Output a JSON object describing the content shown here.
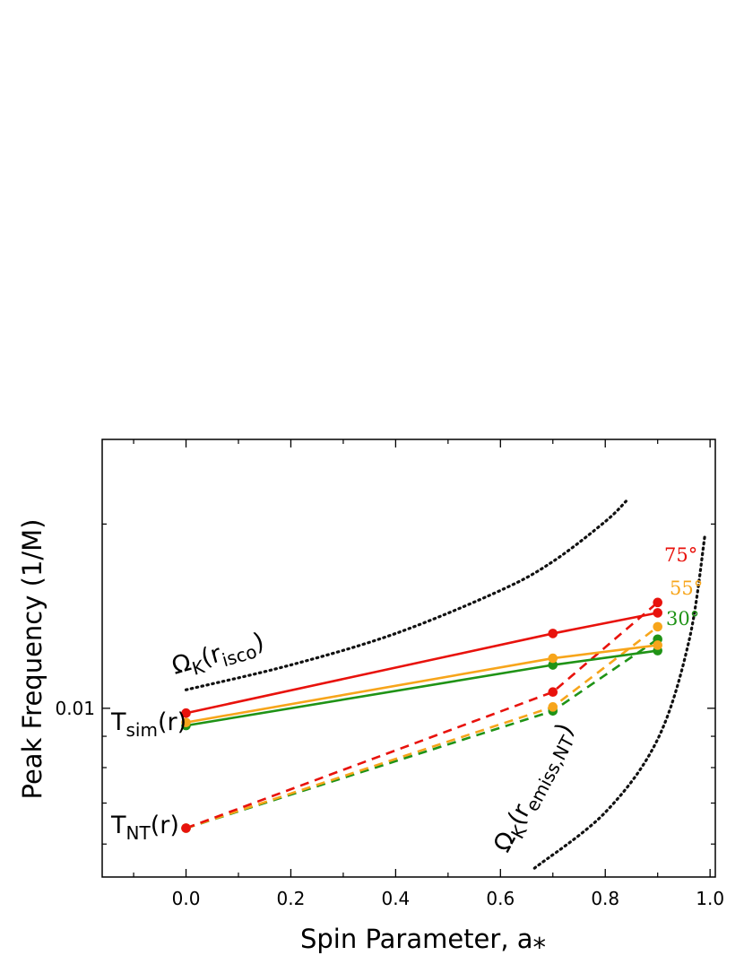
{
  "colors": {
    "75": "#e8120c",
    "55": "#f7a51b",
    "30": "#1f9316",
    "dotted": "#111111"
  },
  "chart_data": {
    "type": "line",
    "xlabel": "Spin Parameter, a⁎",
    "ylabel": "Peak Frequency (1/M)",
    "xlim": [
      -0.16,
      1.01
    ],
    "ylim": [
      0.0053,
      0.0275
    ],
    "yscale": "log",
    "x_ticks": [
      "0.0",
      "0.2",
      "0.4",
      "0.6",
      "0.8",
      "1.0"
    ],
    "x_tick_values": [
      0.0,
      0.2,
      0.4,
      0.6,
      0.8,
      1.0
    ],
    "y_ticks": [
      "0.01"
    ],
    "y_tick_values": [
      0.01
    ],
    "grid": false,
    "series": [
      {
        "name": "75°",
        "style": "solid",
        "color_key": "75",
        "x": [
          0.0,
          0.7,
          0.9
        ],
        "y": [
          0.00982,
          0.01325,
          0.01432
        ]
      },
      {
        "name": "55°",
        "style": "solid",
        "color_key": "55",
        "x": [
          0.0,
          0.7,
          0.9
        ],
        "y": [
          0.00948,
          0.01207,
          0.01268
        ]
      },
      {
        "name": "30°",
        "style": "solid",
        "color_key": "30",
        "x": [
          0.0,
          0.7,
          0.9
        ],
        "y": [
          0.00937,
          0.01177,
          0.01242
        ]
      },
      {
        "name": "75°",
        "style": "dashed",
        "color_key": "75",
        "x": [
          0.0,
          0.7,
          0.9
        ],
        "y": [
          0.00637,
          0.01063,
          0.01489
        ]
      },
      {
        "name": "55°",
        "style": "dashed",
        "color_key": "55",
        "x": [
          0.0,
          0.7,
          0.9
        ],
        "y": [
          0.00637,
          0.01005,
          0.01359
        ]
      },
      {
        "name": "30°",
        "style": "dashed",
        "color_key": "30",
        "x": [
          0.0,
          0.7,
          0.9
        ],
        "y": [
          0.00637,
          0.0099,
          0.01297
        ]
      }
    ],
    "reference_curves": [
      {
        "style": "dotted",
        "x": [
          0.0,
          0.2,
          0.4,
          0.6,
          0.7,
          0.8,
          0.84
        ],
        "y": [
          0.01072,
          0.01177,
          0.01325,
          0.01558,
          0.01737,
          0.02019,
          0.02181
        ]
      },
      {
        "style": "dotted",
        "x": [
          0.665,
          0.8,
          0.9,
          0.96,
          0.99
        ],
        "y": [
          0.00548,
          0.00676,
          0.0089,
          0.01291,
          0.01913
        ]
      }
    ],
    "annotations": {
      "omega_isco": {
        "main": "Ω",
        "sub1": "K",
        "paren_open": "(r",
        "sub2": "isco",
        "paren_close": ")"
      },
      "omega_emiss": {
        "main": "Ω",
        "sub1": "K",
        "paren_open": "(r",
        "sub2": "emiss,NT",
        "paren_close": ")"
      },
      "t_sim": {
        "main": "T",
        "sub": "sim",
        "tail": "(r)"
      },
      "t_nt": {
        "main": "T",
        "sub": "NT",
        "tail": "(r)"
      },
      "angles": [
        "75°",
        "55°",
        "30°"
      ]
    }
  }
}
